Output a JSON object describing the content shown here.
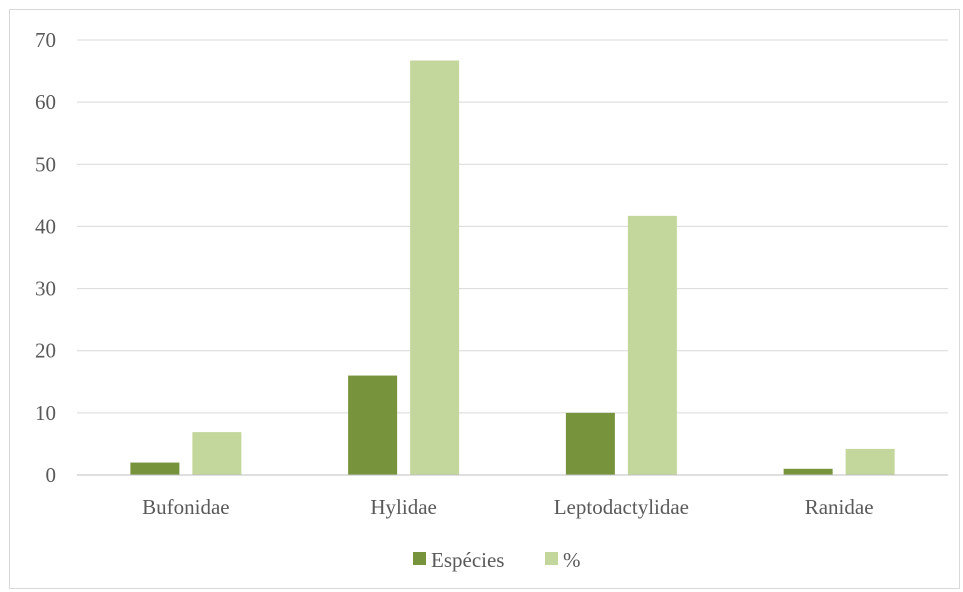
{
  "chart_data": {
    "type": "bar",
    "categories": [
      "Bufonidae",
      "Hylidae",
      "Leptodactylidae",
      "Ranidae"
    ],
    "series": [
      {
        "name": "Espécies",
        "values": [
          2,
          16,
          10,
          1
        ],
        "color": "#77933c"
      },
      {
        "name": "%",
        "values": [
          6.9,
          66.7,
          41.7,
          4.2
        ],
        "color": "#c3d69b"
      }
    ],
    "ylim": [
      0,
      70
    ],
    "yticks": [
      "0",
      "10",
      "20",
      "30",
      "40",
      "50",
      "60",
      "70"
    ],
    "grid": true,
    "legend_position": "bottom",
    "gridline_color": "#d9d9d9",
    "axis_color": "#bfbfbf"
  }
}
